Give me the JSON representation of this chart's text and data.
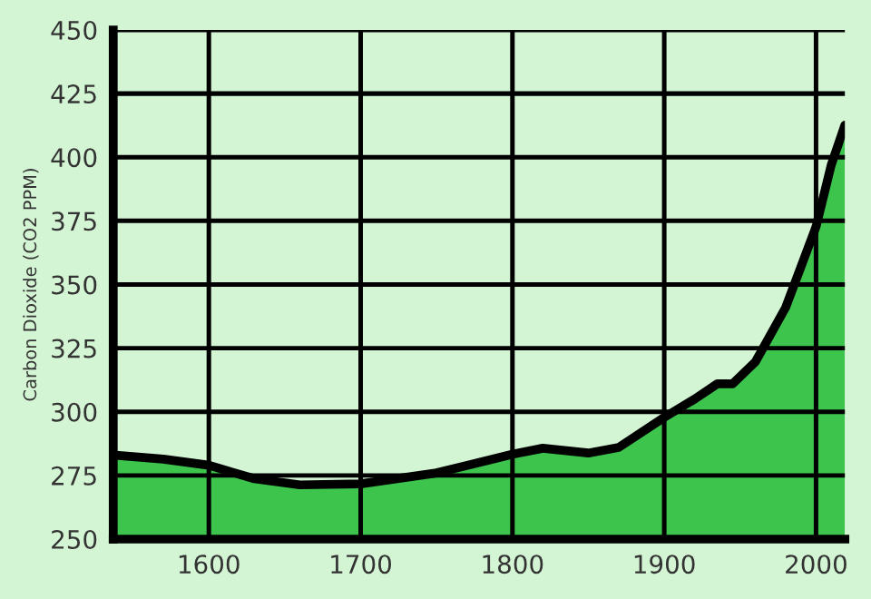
{
  "chart_data": {
    "type": "area",
    "ylabel": "Carbon Dioxide (CO2 PPM)",
    "x": [
      1537,
      1570,
      1600,
      1630,
      1660,
      1700,
      1750,
      1800,
      1820,
      1850,
      1870,
      1900,
      1920,
      1935,
      1945,
      1960,
      1980,
      2000,
      2010,
      2019
    ],
    "series": [
      {
        "color": "#3cc44c",
        "values": [
          283,
          281.4,
          279,
          273.7,
          271.3,
          271.7,
          276,
          283.3,
          285.7,
          283.8,
          286,
          297.8,
          305,
          311,
          311,
          319.6,
          341,
          372.7,
          396.9,
          412.6
        ]
      }
    ],
    "xlim": [
      1537,
      2019
    ],
    "xticks": [
      1600,
      1700,
      1800,
      1900,
      2000
    ],
    "ylim": [
      250,
      450
    ],
    "yticks": [
      250,
      275,
      300,
      325,
      350,
      375,
      400,
      425,
      450
    ],
    "grid": true
  }
}
